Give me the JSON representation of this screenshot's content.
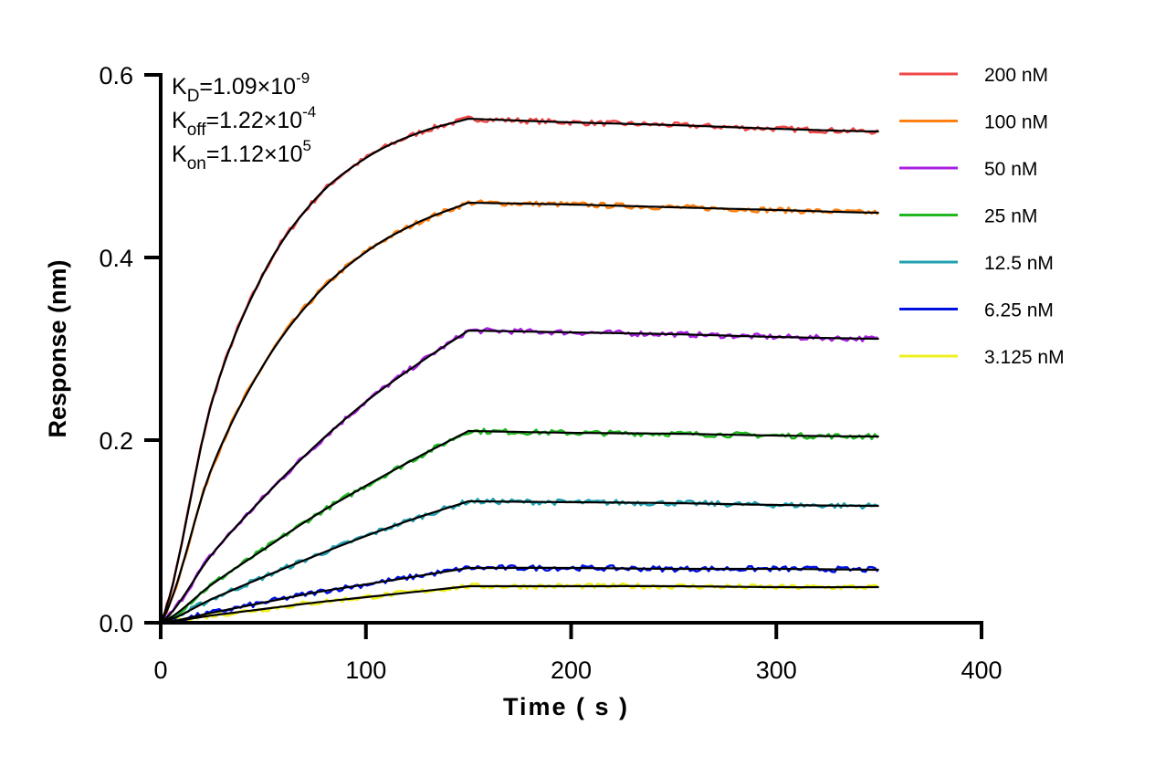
{
  "chart_data": {
    "type": "line",
    "xlabel": "Time ( s )",
    "ylabel": "Response (nm)",
    "xlim": [
      0,
      400
    ],
    "ylim": [
      0,
      0.6
    ],
    "xticks": [
      "0",
      "100",
      "200",
      "300",
      "400"
    ],
    "yticks": [
      "0.0",
      "0.2",
      "0.4",
      "0.6"
    ],
    "grid": false,
    "legend_position": "right",
    "annotations": [
      {
        "sym": "K",
        "sub": "D",
        "val": "=1.09×10",
        "exp": "-9"
      },
      {
        "sym": "K",
        "sub": "off",
        "val": "=1.22×10",
        "exp": "-4"
      },
      {
        "sym": "K",
        "sub": "on",
        "val": "=1.12×10",
        "exp": "5"
      }
    ],
    "fit_color": "#000000",
    "x": [
      0,
      25,
      50,
      75,
      100,
      125,
      150,
      200,
      250,
      300,
      350
    ],
    "series": [
      {
        "name": "200 nM",
        "color": "#f04848",
        "values": [
          0,
          0.242,
          0.382,
          0.463,
          0.509,
          0.536,
          0.552,
          0.548,
          0.545,
          0.541,
          0.538
        ]
      },
      {
        "name": "100 nM",
        "color": "#ff8010",
        "values": [
          0,
          0.17,
          0.282,
          0.357,
          0.406,
          0.438,
          0.46,
          0.458,
          0.455,
          0.452,
          0.449
        ]
      },
      {
        "name": "50 nM",
        "color": "#a820e0",
        "values": [
          0,
          0.075,
          0.137,
          0.193,
          0.242,
          0.283,
          0.32,
          0.318,
          0.316,
          0.313,
          0.311
        ]
      },
      {
        "name": "25 nM",
        "color": "#20b820",
        "values": [
          0,
          0.042,
          0.08,
          0.117,
          0.15,
          0.181,
          0.21,
          0.208,
          0.207,
          0.205,
          0.204
        ]
      },
      {
        "name": "12.5 nM",
        "color": "#20a0b0",
        "values": [
          0,
          0.026,
          0.05,
          0.073,
          0.095,
          0.115,
          0.133,
          0.132,
          0.131,
          0.129,
          0.128
        ]
      },
      {
        "name": "6.25 nM",
        "color": "#0010e0",
        "values": [
          0,
          0.011,
          0.022,
          0.033,
          0.042,
          0.051,
          0.06,
          0.06,
          0.059,
          0.059,
          0.058
        ]
      },
      {
        "name": "3.125 nM",
        "color": "#f0f020",
        "values": [
          0,
          0.008,
          0.015,
          0.022,
          0.028,
          0.034,
          0.04,
          0.04,
          0.04,
          0.039,
          0.039
        ]
      }
    ]
  }
}
